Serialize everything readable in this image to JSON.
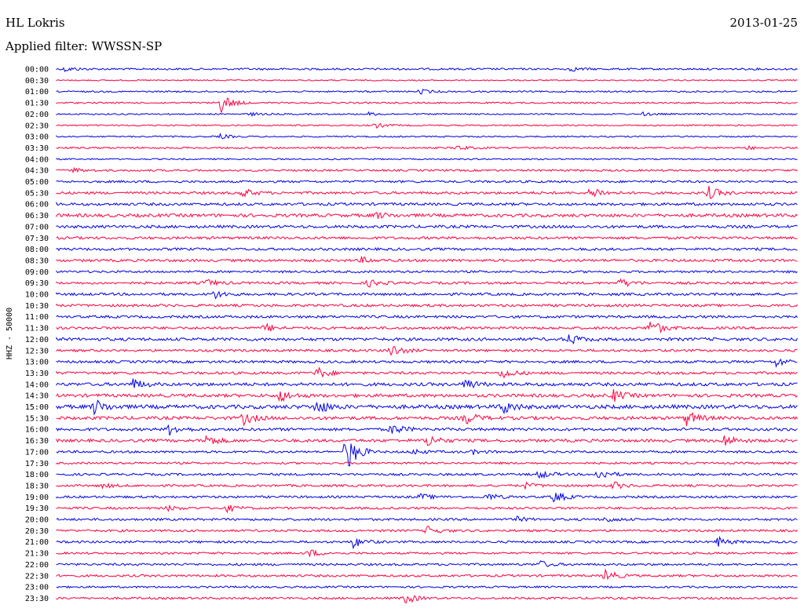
{
  "header": {
    "station": "HL Lokris",
    "date": "2013-01-25",
    "filter": "Applied filter: WWSSN-SP"
  },
  "chart_data": {
    "type": "line",
    "title": "",
    "ylabel": "HHZ - 50000",
    "colors": [
      "#0000e6",
      "#ff0040"
    ],
    "grid": false,
    "legend": "none",
    "rows": [
      {
        "time": "00:00",
        "color": "#0000e6",
        "noise": 1.2,
        "events": [
          {
            "x": 0.01,
            "amp": 3
          },
          {
            "x": 0.69,
            "amp": 3
          }
        ]
      },
      {
        "time": "00:30",
        "color": "#ff0040",
        "noise": 0.8,
        "events": []
      },
      {
        "time": "01:00",
        "color": "#0000e6",
        "noise": 1.0,
        "events": [
          {
            "x": 0.49,
            "amp": 3
          }
        ]
      },
      {
        "time": "01:30",
        "color": "#ff0040",
        "noise": 1.0,
        "events": [
          {
            "x": 0.22,
            "amp": 14
          }
        ]
      },
      {
        "time": "02:00",
        "color": "#0000e6",
        "noise": 0.9,
        "events": [
          {
            "x": 0.26,
            "amp": 2
          },
          {
            "x": 0.42,
            "amp": 2
          },
          {
            "x": 0.79,
            "amp": 2
          }
        ]
      },
      {
        "time": "02:30",
        "color": "#ff0040",
        "noise": 0.9,
        "events": [
          {
            "x": 0.43,
            "amp": 3
          }
        ]
      },
      {
        "time": "03:00",
        "color": "#0000e6",
        "noise": 0.9,
        "events": [
          {
            "x": 0.22,
            "amp": 3
          }
        ]
      },
      {
        "time": "03:30",
        "color": "#ff0040",
        "noise": 1.1,
        "events": [
          {
            "x": 0.54,
            "amp": 3
          },
          {
            "x": 0.93,
            "amp": 2
          }
        ]
      },
      {
        "time": "04:00",
        "color": "#0000e6",
        "noise": 0.9,
        "events": []
      },
      {
        "time": "04:30",
        "color": "#ff0040",
        "noise": 1.2,
        "events": [
          {
            "x": 0.02,
            "amp": 3
          }
        ]
      },
      {
        "time": "05:00",
        "color": "#0000e6",
        "noise": 1.4,
        "events": []
      },
      {
        "time": "05:30",
        "color": "#ff0040",
        "noise": 1.6,
        "events": [
          {
            "x": 0.25,
            "amp": 6
          },
          {
            "x": 0.72,
            "amp": 9
          },
          {
            "x": 0.88,
            "amp": 8
          }
        ]
      },
      {
        "time": "06:00",
        "color": "#0000e6",
        "noise": 1.7,
        "events": []
      },
      {
        "time": "06:30",
        "color": "#ff0040",
        "noise": 2.0,
        "events": [
          {
            "x": 0.43,
            "amp": 4
          }
        ]
      },
      {
        "time": "07:00",
        "color": "#0000e6",
        "noise": 1.8,
        "events": []
      },
      {
        "time": "07:30",
        "color": "#ff0040",
        "noise": 1.6,
        "events": []
      },
      {
        "time": "08:00",
        "color": "#0000e6",
        "noise": 1.6,
        "events": []
      },
      {
        "time": "08:30",
        "color": "#ff0040",
        "noise": 1.6,
        "events": [
          {
            "x": 0.41,
            "amp": 4
          }
        ]
      },
      {
        "time": "09:00",
        "color": "#0000e6",
        "noise": 1.4,
        "events": []
      },
      {
        "time": "09:30",
        "color": "#ff0040",
        "noise": 1.5,
        "events": [
          {
            "x": 0.2,
            "amp": 5
          },
          {
            "x": 0.42,
            "amp": 5
          },
          {
            "x": 0.76,
            "amp": 6
          }
        ]
      },
      {
        "time": "10:00",
        "color": "#0000e6",
        "noise": 1.6,
        "events": [
          {
            "x": 0.21,
            "amp": 6
          }
        ]
      },
      {
        "time": "10:30",
        "color": "#ff0040",
        "noise": 1.6,
        "events": []
      },
      {
        "time": "11:00",
        "color": "#0000e6",
        "noise": 1.6,
        "events": []
      },
      {
        "time": "11:30",
        "color": "#ff0040",
        "noise": 1.6,
        "events": [
          {
            "x": 0.28,
            "amp": 6
          },
          {
            "x": 0.8,
            "amp": 12
          }
        ]
      },
      {
        "time": "12:00",
        "color": "#0000e6",
        "noise": 1.9,
        "events": [
          {
            "x": 0.69,
            "amp": 7
          }
        ]
      },
      {
        "time": "12:30",
        "color": "#ff0040",
        "noise": 1.5,
        "events": [
          {
            "x": 0.45,
            "amp": 9
          }
        ]
      },
      {
        "time": "13:00",
        "color": "#0000e6",
        "noise": 1.6,
        "events": [
          {
            "x": 0.97,
            "amp": 6
          }
        ]
      },
      {
        "time": "13:30",
        "color": "#ff0040",
        "noise": 1.6,
        "events": [
          {
            "x": 0.35,
            "amp": 8
          },
          {
            "x": 0.6,
            "amp": 8
          }
        ]
      },
      {
        "time": "14:00",
        "color": "#0000e6",
        "noise": 2.0,
        "events": [
          {
            "x": 0.1,
            "amp": 8
          },
          {
            "x": 0.55,
            "amp": 8
          }
        ]
      },
      {
        "time": "14:30",
        "color": "#ff0040",
        "noise": 2.0,
        "events": [
          {
            "x": 0.3,
            "amp": 8
          },
          {
            "x": 0.75,
            "amp": 8
          }
        ]
      },
      {
        "time": "15:00",
        "color": "#0000e6",
        "noise": 2.4,
        "events": [
          {
            "x": 0.05,
            "amp": 10
          },
          {
            "x": 0.35,
            "amp": 10
          },
          {
            "x": 0.6,
            "amp": 10
          }
        ]
      },
      {
        "time": "15:30",
        "color": "#ff0040",
        "noise": 2.0,
        "events": [
          {
            "x": 0.25,
            "amp": 9
          },
          {
            "x": 0.55,
            "amp": 9
          },
          {
            "x": 0.85,
            "amp": 9
          }
        ]
      },
      {
        "time": "16:00",
        "color": "#0000e6",
        "noise": 1.8,
        "events": [
          {
            "x": 0.15,
            "amp": 8
          },
          {
            "x": 0.45,
            "amp": 8
          }
        ]
      },
      {
        "time": "16:30",
        "color": "#ff0040",
        "noise": 1.8,
        "events": [
          {
            "x": 0.2,
            "amp": 8
          },
          {
            "x": 0.5,
            "amp": 8
          },
          {
            "x": 0.9,
            "amp": 8
          }
        ]
      },
      {
        "time": "17:00",
        "color": "#0000e6",
        "noise": 1.4,
        "events": [
          {
            "x": 0.39,
            "amp": 28
          },
          {
            "x": 0.48,
            "amp": 4
          },
          {
            "x": 0.56,
            "amp": 3
          }
        ]
      },
      {
        "time": "17:30",
        "color": "#ff0040",
        "noise": 1.3,
        "events": []
      },
      {
        "time": "18:00",
        "color": "#0000e6",
        "noise": 1.4,
        "events": [
          {
            "x": 0.65,
            "amp": 6
          },
          {
            "x": 0.73,
            "amp": 8
          }
        ]
      },
      {
        "time": "18:30",
        "color": "#ff0040",
        "noise": 1.4,
        "events": [
          {
            "x": 0.06,
            "amp": 3
          },
          {
            "x": 0.63,
            "amp": 4
          },
          {
            "x": 0.75,
            "amp": 5
          }
        ]
      },
      {
        "time": "19:00",
        "color": "#0000e6",
        "noise": 1.4,
        "events": [
          {
            "x": 0.49,
            "amp": 4
          },
          {
            "x": 0.58,
            "amp": 5
          },
          {
            "x": 0.67,
            "amp": 8
          }
        ]
      },
      {
        "time": "19:30",
        "color": "#ff0040",
        "noise": 1.4,
        "events": [
          {
            "x": 0.15,
            "amp": 3
          },
          {
            "x": 0.23,
            "amp": 4
          }
        ]
      },
      {
        "time": "20:00",
        "color": "#0000e6",
        "noise": 1.4,
        "events": [
          {
            "x": 0.62,
            "amp": 3
          },
          {
            "x": 0.74,
            "amp": 4
          }
        ]
      },
      {
        "time": "20:30",
        "color": "#ff0040",
        "noise": 1.4,
        "events": [
          {
            "x": 0.5,
            "amp": 6
          }
        ]
      },
      {
        "time": "21:00",
        "color": "#0000e6",
        "noise": 1.4,
        "events": [
          {
            "x": 0.4,
            "amp": 7
          },
          {
            "x": 0.89,
            "amp": 7
          }
        ]
      },
      {
        "time": "21:30",
        "color": "#ff0040",
        "noise": 1.3,
        "events": [
          {
            "x": 0.34,
            "amp": 5
          }
        ]
      },
      {
        "time": "22:00",
        "color": "#0000e6",
        "noise": 1.4,
        "events": [
          {
            "x": 0.65,
            "amp": 5
          }
        ]
      },
      {
        "time": "22:30",
        "color": "#ff0040",
        "noise": 1.4,
        "events": [
          {
            "x": 0.74,
            "amp": 8
          }
        ]
      },
      {
        "time": "23:00",
        "color": "#0000e6",
        "noise": 1.2,
        "events": []
      },
      {
        "time": "23:30",
        "color": "#ff0040",
        "noise": 1.3,
        "events": [
          {
            "x": 0.47,
            "amp": 7
          }
        ]
      }
    ]
  }
}
